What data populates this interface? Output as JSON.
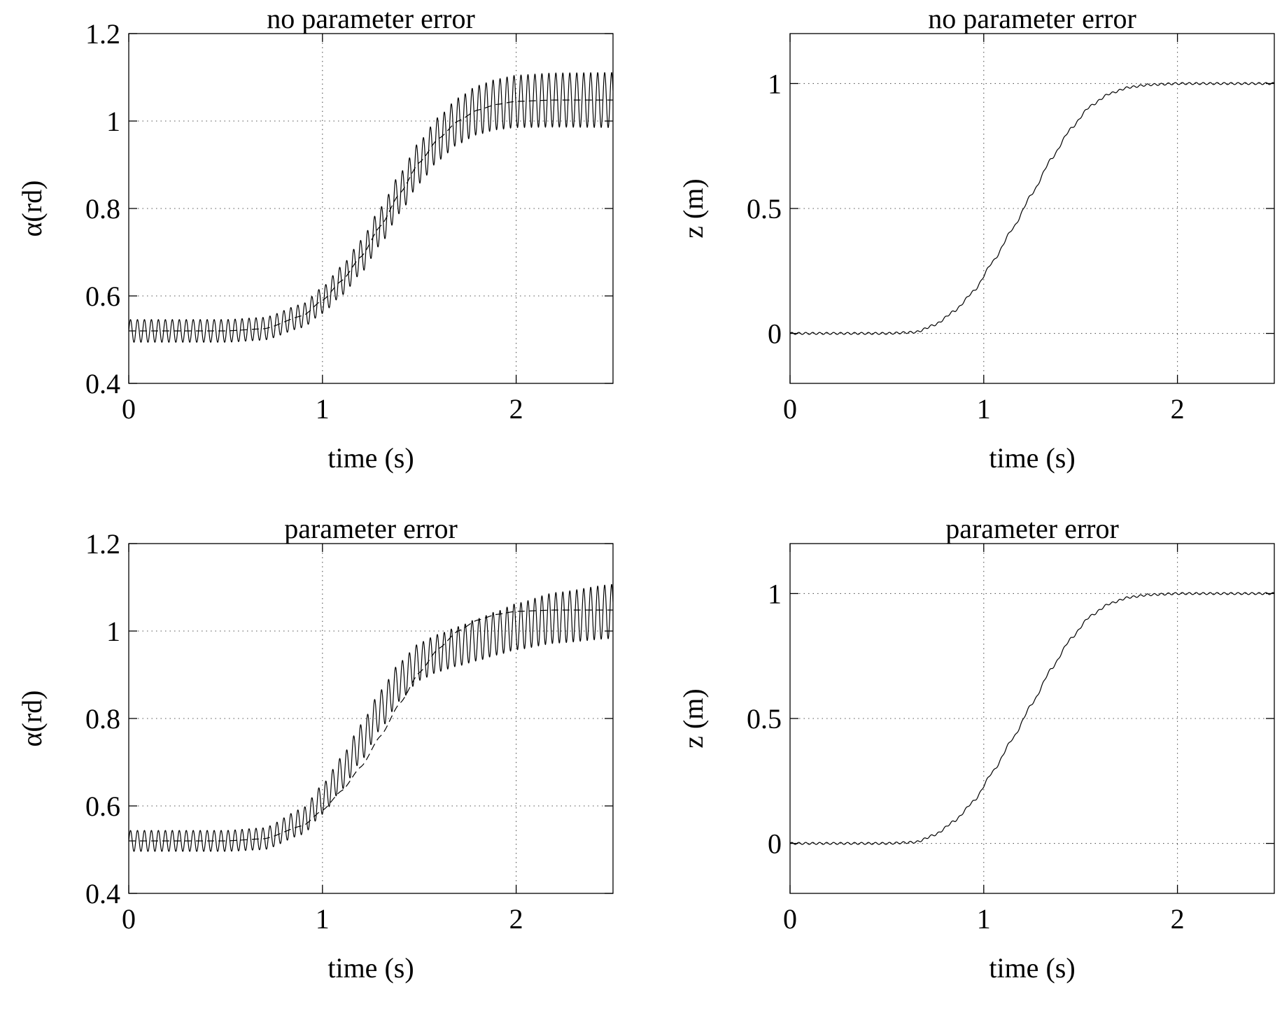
{
  "chart_data": [
    {
      "type": "line",
      "title": "no parameter error",
      "xlabel": "time (s)",
      "ylabel": "α(rd)",
      "xlim": [
        0,
        2.5
      ],
      "ylim": [
        0.4,
        1.2
      ],
      "xticks": [
        "0",
        "1",
        "2"
      ],
      "yticks": [
        "0.4",
        "0.6",
        "0.8",
        "1",
        "1.2"
      ],
      "grid": true,
      "series": [
        {
          "style": "dashed",
          "x": [
            0,
            0.5,
            0.7,
            0.9,
            1.0,
            1.1,
            1.2,
            1.3,
            1.4,
            1.5,
            1.6,
            1.7,
            1.8,
            1.9,
            2.0,
            2.2,
            2.5
          ],
          "y": [
            0.52,
            0.52,
            0.525,
            0.555,
            0.59,
            0.635,
            0.69,
            0.76,
            0.835,
            0.905,
            0.96,
            1.0,
            1.025,
            1.038,
            1.045,
            1.048,
            1.048
          ]
        },
        {
          "style": "solid",
          "oscillating": true,
          "x": [
            0,
            0.5,
            0.7,
            0.9,
            1.0,
            1.1,
            1.2,
            1.3,
            1.4,
            1.5,
            1.6,
            1.7,
            1.8,
            1.9,
            2.0,
            2.2,
            2.5
          ],
          "y_center": [
            0.52,
            0.52,
            0.525,
            0.555,
            0.59,
            0.635,
            0.69,
            0.76,
            0.835,
            0.905,
            0.96,
            1.0,
            1.025,
            1.038,
            1.045,
            1.048,
            1.048
          ],
          "amplitude": [
            0.026,
            0.026,
            0.026,
            0.027,
            0.03,
            0.034,
            0.038,
            0.042,
            0.045,
            0.048,
            0.05,
            0.053,
            0.056,
            0.058,
            0.06,
            0.062,
            0.063
          ],
          "period": 0.036
        }
      ]
    },
    {
      "type": "line",
      "title": "no parameter error",
      "xlabel": "time (s)",
      "ylabel": "z (m)",
      "xlim": [
        0,
        2.5
      ],
      "ylim": [
        -0.2,
        1.2
      ],
      "xticks": [
        "0",
        "1",
        "2"
      ],
      "yticks": [
        "0",
        "0.5",
        "1"
      ],
      "grid": true,
      "series": [
        {
          "style": "solid",
          "oscillating": true,
          "x": [
            0,
            0.5,
            0.65,
            0.75,
            0.85,
            0.95,
            1.05,
            1.15,
            1.25,
            1.35,
            1.45,
            1.55,
            1.65,
            1.75,
            1.85,
            2.0,
            2.5
          ],
          "y_center": [
            0,
            0,
            0.005,
            0.035,
            0.09,
            0.17,
            0.29,
            0.42,
            0.56,
            0.7,
            0.82,
            0.91,
            0.96,
            0.985,
            0.995,
            1.0,
            1.0
          ],
          "amplitude": [
            0.004,
            0.004,
            0.004,
            0.004,
            0.004,
            0.004,
            0.004,
            0.004,
            0.004,
            0.004,
            0.004,
            0.004,
            0.004,
            0.004,
            0.004,
            0.004,
            0.004
          ],
          "period": 0.036
        }
      ]
    },
    {
      "type": "line",
      "title": "parameter error",
      "xlabel": "time (s)",
      "ylabel": "α(rd)",
      "xlim": [
        0,
        2.5
      ],
      "ylim": [
        0.4,
        1.2
      ],
      "xticks": [
        "0",
        "1",
        "2"
      ],
      "yticks": [
        "0.4",
        "0.6",
        "0.8",
        "1",
        "1.2"
      ],
      "grid": true,
      "series": [
        {
          "style": "dashed",
          "x": [
            0,
            0.5,
            0.7,
            0.9,
            1.0,
            1.1,
            1.2,
            1.3,
            1.4,
            1.5,
            1.6,
            1.7,
            1.8,
            1.9,
            2.0,
            2.2,
            2.5
          ],
          "y": [
            0.52,
            0.52,
            0.525,
            0.555,
            0.59,
            0.635,
            0.69,
            0.76,
            0.835,
            0.905,
            0.96,
            1.0,
            1.025,
            1.038,
            1.045,
            1.048,
            1.048
          ]
        },
        {
          "style": "solid",
          "oscillating": true,
          "x": [
            0,
            0.5,
            0.7,
            0.9,
            1.0,
            1.1,
            1.2,
            1.3,
            1.4,
            1.5,
            1.6,
            1.7,
            1.8,
            1.9,
            2.0,
            2.2,
            2.5
          ],
          "y_center": [
            0.52,
            0.52,
            0.525,
            0.565,
            0.615,
            0.675,
            0.745,
            0.82,
            0.885,
            0.93,
            0.95,
            0.965,
            0.98,
            0.995,
            1.01,
            1.03,
            1.045
          ],
          "amplitude": [
            0.024,
            0.024,
            0.025,
            0.03,
            0.034,
            0.038,
            0.042,
            0.044,
            0.044,
            0.043,
            0.043,
            0.045,
            0.048,
            0.05,
            0.053,
            0.058,
            0.062
          ],
          "period": 0.036
        }
      ]
    },
    {
      "type": "line",
      "title": "parameter error",
      "xlabel": "time (s)",
      "ylabel": "z (m)",
      "xlim": [
        0,
        2.5
      ],
      "ylim": [
        -0.2,
        1.2
      ],
      "xticks": [
        "0",
        "1",
        "2"
      ],
      "yticks": [
        "0",
        "0.5",
        "1"
      ],
      "grid": true,
      "series": [
        {
          "style": "solid",
          "oscillating": true,
          "x": [
            0,
            0.5,
            0.65,
            0.75,
            0.85,
            0.95,
            1.05,
            1.15,
            1.25,
            1.35,
            1.45,
            1.55,
            1.65,
            1.75,
            1.85,
            2.0,
            2.5
          ],
          "y_center": [
            0,
            0,
            0.005,
            0.035,
            0.09,
            0.17,
            0.29,
            0.42,
            0.56,
            0.7,
            0.82,
            0.91,
            0.96,
            0.985,
            0.995,
            1.0,
            1.0
          ],
          "amplitude": [
            0.004,
            0.004,
            0.004,
            0.004,
            0.004,
            0.004,
            0.004,
            0.004,
            0.004,
            0.004,
            0.004,
            0.004,
            0.004,
            0.004,
            0.004,
            0.004,
            0.004
          ],
          "period": 0.036
        }
      ]
    }
  ]
}
